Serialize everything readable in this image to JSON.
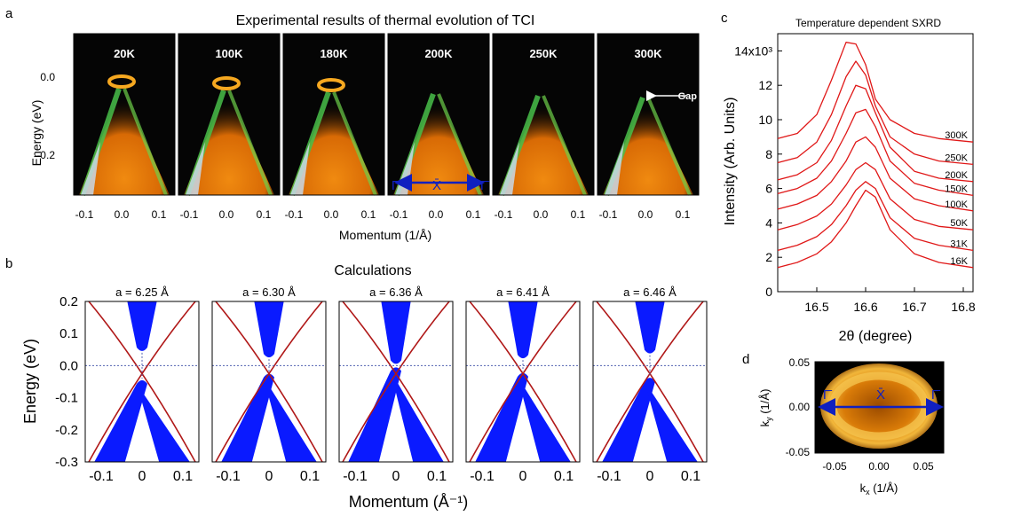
{
  "panel_labels": {
    "a": "a",
    "b": "b",
    "c": "c",
    "d": "d"
  },
  "panel_a": {
    "title": "Experimental results of thermal evolution of TCI",
    "ylabel": "Energy (eV)",
    "xlabel": "Momentum (1/Å)",
    "yticks": [
      "0.0",
      "-0.2"
    ],
    "xticks": [
      "-0.1",
      "0.0",
      "0.1"
    ],
    "temperatures": [
      "20K",
      "100K",
      "180K",
      "200K",
      "250K",
      "300K"
    ],
    "gap_label": "Gap",
    "path_labels": [
      "Γ̄",
      "X̄",
      "Γ̄"
    ]
  },
  "panel_b": {
    "title": "Calculations",
    "ylabel": "Energy (eV)",
    "xlabel": "Momentum (Å⁻¹)",
    "yticks": [
      "0.2",
      "0.1",
      "0.0",
      "-0.1",
      "-0.2",
      "-0.3"
    ],
    "xticks": [
      "-0.1",
      "0",
      "0.1"
    ],
    "lattice": [
      "a = 6.25 Å",
      "a = 6.30 Å",
      "a = 6.36 Å",
      "a = 6.41 Å",
      "a = 6.46 Å"
    ],
    "gap_meV": [
      80,
      40,
      0,
      35,
      65
    ]
  },
  "panel_d": {
    "ylabel": "k",
    "ylabel_sub": "y",
    "ylabel_unit": " (1/Å)",
    "xlabel": "k",
    "xlabel_sub": "x",
    "xlabel_unit": " (1/Å)",
    "yticks": [
      "0.05",
      "0.00",
      "-0.05"
    ],
    "xticks": [
      "-0.05",
      "0.00",
      "0.05"
    ],
    "path_labels": [
      "Γ̄",
      "X̄",
      "Γ̄"
    ]
  },
  "chart_data": {
    "type": "line",
    "title": "Temperature dependent SXRD",
    "xlabel": "2θ (degree)",
    "ylabel": "Intensity (Arb. Units)",
    "xlim": [
      16.42,
      16.82
    ],
    "ylim": [
      0,
      15
    ],
    "xticks": [
      "16.5",
      "16.6",
      "16.7",
      "16.8"
    ],
    "yticks": [
      "0",
      "2",
      "4",
      "6",
      "8",
      "10",
      "12",
      "14x10³"
    ],
    "x": [
      16.42,
      16.46,
      16.5,
      16.53,
      16.56,
      16.58,
      16.6,
      16.62,
      16.65,
      16.7,
      16.75,
      16.82
    ],
    "series": [
      {
        "name": "16K",
        "peak_x": 16.61,
        "values": [
          1.4,
          1.7,
          2.2,
          2.9,
          4.0,
          5.0,
          5.9,
          5.5,
          3.6,
          2.2,
          1.7,
          1.4
        ]
      },
      {
        "name": "31K",
        "peak_x": 16.61,
        "values": [
          2.4,
          2.7,
          3.2,
          3.9,
          5.0,
          5.9,
          6.4,
          6.0,
          4.3,
          3.1,
          2.7,
          2.4
        ]
      },
      {
        "name": "50K",
        "peak_x": 16.61,
        "values": [
          3.6,
          3.9,
          4.4,
          5.1,
          6.2,
          7.1,
          7.5,
          7.1,
          5.4,
          4.2,
          3.8,
          3.6
        ]
      },
      {
        "name": "100K",
        "peak_x": 16.61,
        "values": [
          4.8,
          5.1,
          5.6,
          6.4,
          7.6,
          8.7,
          9.0,
          8.4,
          6.6,
          5.4,
          5.0,
          4.7
        ]
      },
      {
        "name": "150K",
        "peak_x": 16.61,
        "values": [
          5.7,
          6.0,
          6.6,
          7.6,
          9.2,
          10.4,
          10.6,
          9.6,
          7.6,
          6.3,
          5.9,
          5.6
        ]
      },
      {
        "name": "200K",
        "peak_x": 16.6,
        "values": [
          6.5,
          6.8,
          7.5,
          8.8,
          10.8,
          12.0,
          11.8,
          10.4,
          8.4,
          7.0,
          6.6,
          6.4
        ]
      },
      {
        "name": "250K",
        "peak_x": 16.59,
        "values": [
          7.5,
          7.8,
          8.7,
          10.3,
          12.5,
          13.4,
          12.6,
          10.8,
          9.0,
          8.0,
          7.6,
          7.4
        ]
      },
      {
        "name": "300K",
        "peak_x": 16.57,
        "values": [
          8.9,
          9.2,
          10.3,
          12.3,
          14.5,
          14.4,
          13.2,
          11.2,
          10.0,
          9.2,
          8.9,
          8.7
        ]
      }
    ]
  }
}
